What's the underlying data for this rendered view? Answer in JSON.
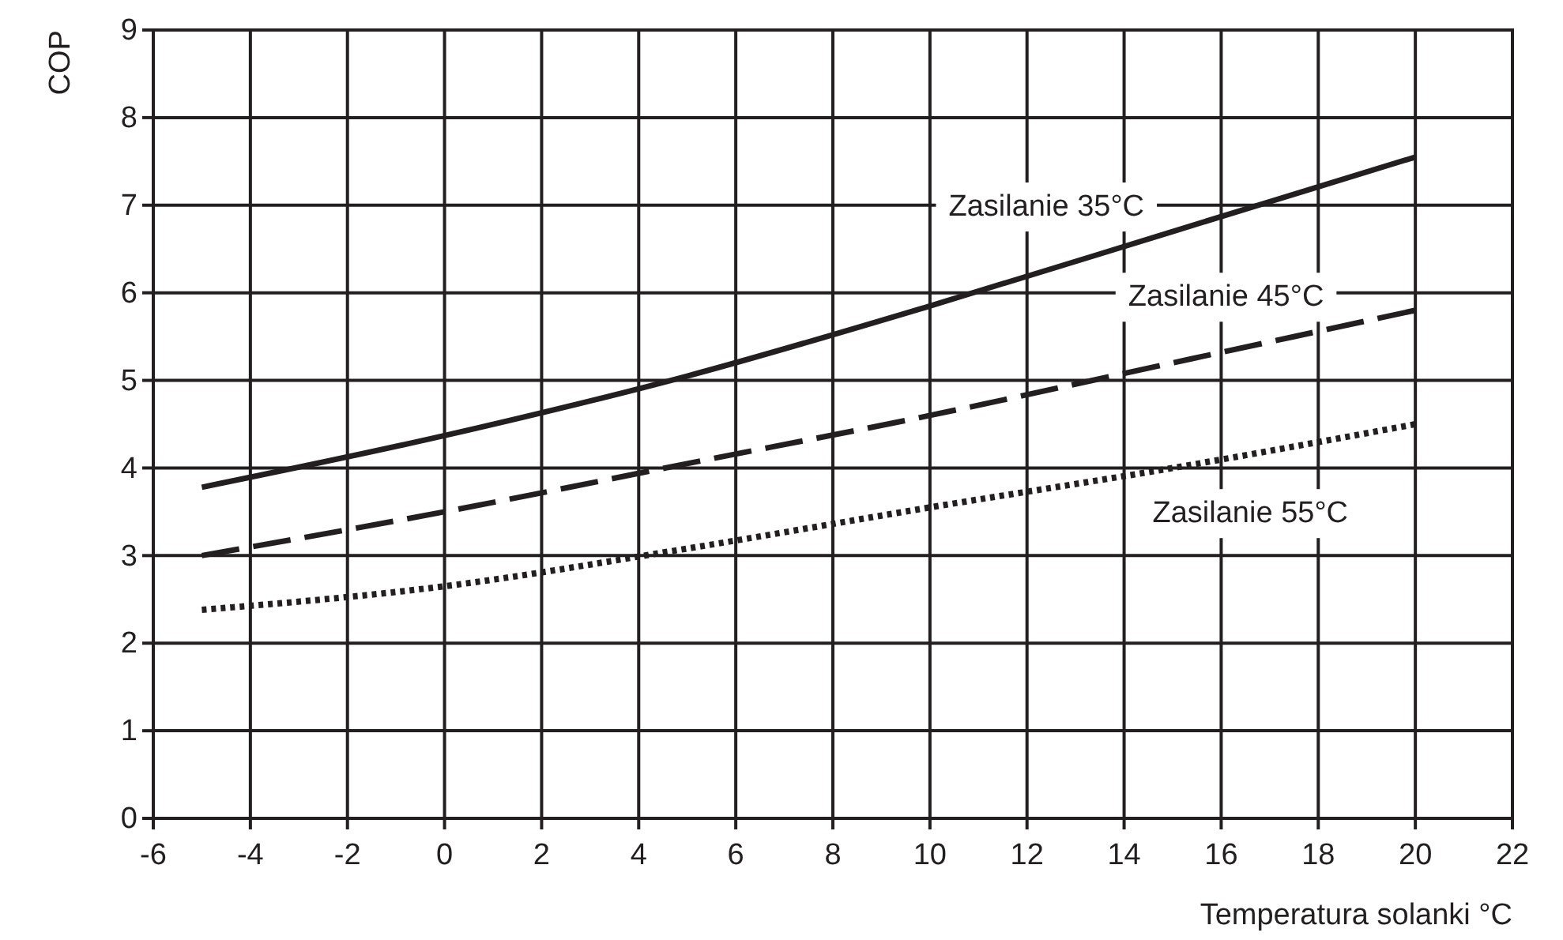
{
  "chart_data": {
    "type": "line",
    "xlabel": "Temperatura solanki °C",
    "ylabel": "COP",
    "x": [
      -5,
      0,
      5,
      10,
      15,
      20
    ],
    "series": [
      {
        "name": "Zasilanie 35°C",
        "color": "#231f20",
        "line_style": "solid",
        "values": [
          3.78,
          4.37,
          5.05,
          5.85,
          6.7,
          7.55
        ]
      },
      {
        "name": "Zasilanie 45°C",
        "color": "#231f20",
        "line_style": "dashed",
        "values": [
          3.0,
          3.5,
          4.05,
          4.6,
          5.2,
          5.8
        ]
      },
      {
        "name": "Zasilanie 55°C",
        "color": "#231f20",
        "line_style": "dotted",
        "values": [
          2.38,
          2.65,
          3.08,
          3.55,
          4.0,
          4.5
        ]
      }
    ],
    "xlim": [
      -6,
      22
    ],
    "xticks": [
      -6,
      -4,
      -2,
      0,
      2,
      4,
      6,
      8,
      10,
      12,
      14,
      16,
      18,
      20,
      22
    ],
    "ylim": [
      0,
      9
    ],
    "yticks": [
      0,
      1,
      2,
      3,
      4,
      5,
      6,
      7,
      8,
      9
    ],
    "grid": true,
    "legend": false,
    "marker": "none"
  }
}
